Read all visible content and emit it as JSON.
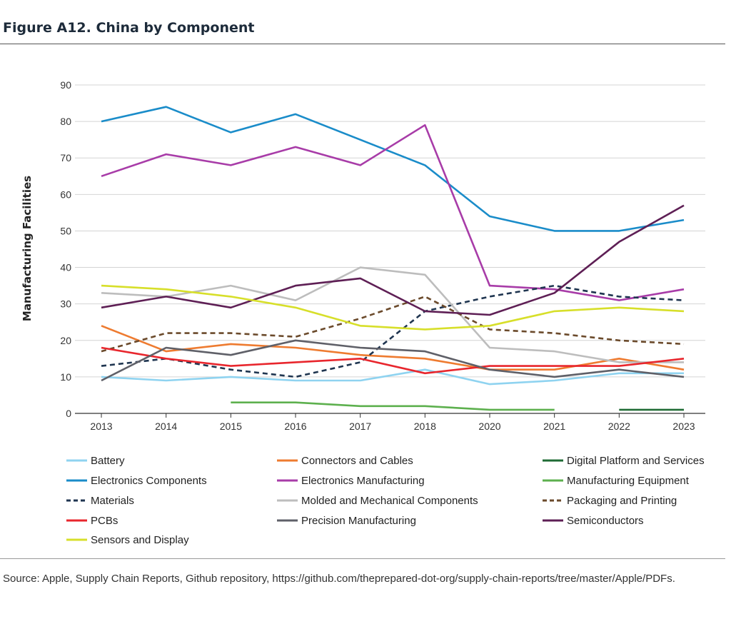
{
  "figure": {
    "title": "Figure A12. China by Component",
    "source": "Source: Apple, Supply Chain Reports, Github repository, https://github.com/theprepared-dot-org/supply-chain-reports/tree/master/Apple/PDFs."
  },
  "chart_data": {
    "type": "line",
    "title": "",
    "xlabel": "",
    "ylabel": "Manufacturing Facilities",
    "ylim": [
      0,
      90
    ],
    "yticks": [
      0,
      10,
      20,
      30,
      40,
      50,
      60,
      70,
      80,
      90
    ],
    "grid": "horizontal",
    "legend_position": "bottom",
    "categories": [
      "2013",
      "2014",
      "2015",
      "2016",
      "2017",
      "2018",
      "2020",
      "2021",
      "2022",
      "2023"
    ],
    "series": [
      {
        "name": "Battery",
        "color": "#8fd3f0",
        "dash": "solid",
        "values": [
          10,
          9,
          10,
          9,
          9,
          12,
          8,
          9,
          11,
          11
        ]
      },
      {
        "name": "Connectors and Cables",
        "color": "#ee7b30",
        "dash": "solid",
        "values": [
          24,
          17,
          19,
          18,
          16,
          15,
          12,
          12,
          15,
          12
        ]
      },
      {
        "name": "Digital Platform and Services",
        "color": "#1f6b35",
        "dash": "solid",
        "values": [
          null,
          null,
          null,
          null,
          null,
          null,
          null,
          null,
          1,
          1
        ]
      },
      {
        "name": "Electronics Components",
        "color": "#1a8cc9",
        "dash": "solid",
        "values": [
          80,
          84,
          77,
          82,
          75,
          68,
          54,
          50,
          50,
          53
        ]
      },
      {
        "name": "Electronics Manufacturing",
        "color": "#a83ca8",
        "dash": "solid",
        "values": [
          65,
          71,
          68,
          73,
          68,
          79,
          35,
          34,
          31,
          34
        ]
      },
      {
        "name": "Manufacturing Equipment",
        "color": "#5db04e",
        "dash": "solid",
        "values": [
          null,
          null,
          3,
          3,
          2,
          2,
          1,
          1,
          null,
          null
        ]
      },
      {
        "name": "Materials",
        "color": "#1f3550",
        "dash": "dashed",
        "values": [
          13,
          15,
          12,
          10,
          14,
          28,
          32,
          35,
          32,
          31
        ]
      },
      {
        "name": "Molded and Mechanical Components",
        "color": "#bdbdbd",
        "dash": "solid",
        "values": [
          33,
          32,
          35,
          31,
          40,
          38,
          18,
          17,
          14,
          14
        ]
      },
      {
        "name": "Packaging and Printing",
        "color": "#6b4a2b",
        "dash": "dashed",
        "values": [
          17,
          22,
          22,
          21,
          26,
          32,
          23,
          22,
          20,
          19
        ]
      },
      {
        "name": "PCBs",
        "color": "#e8262d",
        "dash": "solid",
        "values": [
          18,
          15,
          13,
          14,
          15,
          11,
          13,
          13,
          13,
          15
        ]
      },
      {
        "name": "Precision Manufacturing",
        "color": "#5f6068",
        "dash": "solid",
        "values": [
          9,
          18,
          16,
          20,
          18,
          17,
          12,
          10,
          12,
          10
        ]
      },
      {
        "name": "Semiconductors",
        "color": "#5e1f55",
        "dash": "solid",
        "values": [
          29,
          32,
          29,
          35,
          37,
          28,
          27,
          33,
          47,
          57
        ]
      },
      {
        "name": "Sensors and Display",
        "color": "#d7df2a",
        "dash": "solid",
        "values": [
          35,
          34,
          32,
          29,
          24,
          23,
          24,
          28,
          29,
          28
        ]
      }
    ]
  }
}
